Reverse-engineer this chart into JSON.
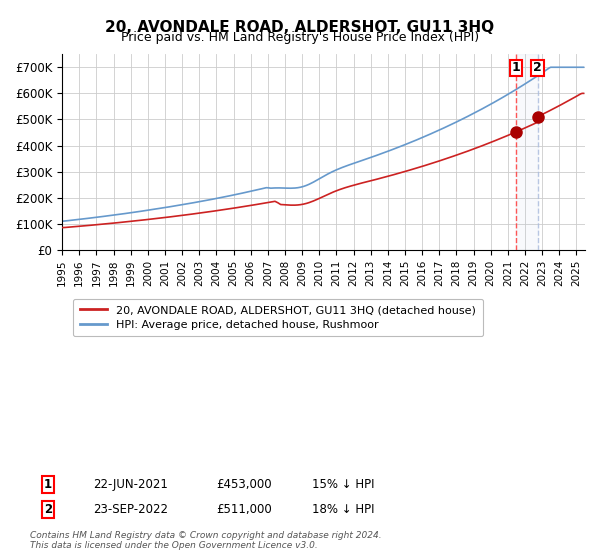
{
  "title": "20, AVONDALE ROAD, ALDERSHOT, GU11 3HQ",
  "subtitle": "Price paid vs. HM Land Registry's House Price Index (HPI)",
  "legend_line1": "20, AVONDALE ROAD, ALDERSHOT, GU11 3HQ (detached house)",
  "legend_line2": "HPI: Average price, detached house, Rushmoor",
  "annotation1_label": "1",
  "annotation1_date": "22-JUN-2021",
  "annotation1_price": "£453,000",
  "annotation1_pct": "15% ↓ HPI",
  "annotation1_value": 453000,
  "annotation1_year": 2021.47,
  "annotation2_label": "2",
  "annotation2_date": "23-SEP-2022",
  "annotation2_price": "£511,000",
  "annotation2_pct": "18% ↓ HPI",
  "annotation2_value": 511000,
  "annotation2_year": 2022.73,
  "hpi_color": "#6699cc",
  "price_color": "#cc2222",
  "marker_color": "#aa0000",
  "vline1_color": "#ff4444",
  "vline2_color": "#aabbdd",
  "background_color": "#ffffff",
  "grid_color": "#cccccc",
  "ymin": 0,
  "ymax": 750000,
  "xmin": 1995.0,
  "xmax": 2025.5,
  "footer": "Contains HM Land Registry data © Crown copyright and database right 2024.\nThis data is licensed under the Open Government Licence v3.0."
}
